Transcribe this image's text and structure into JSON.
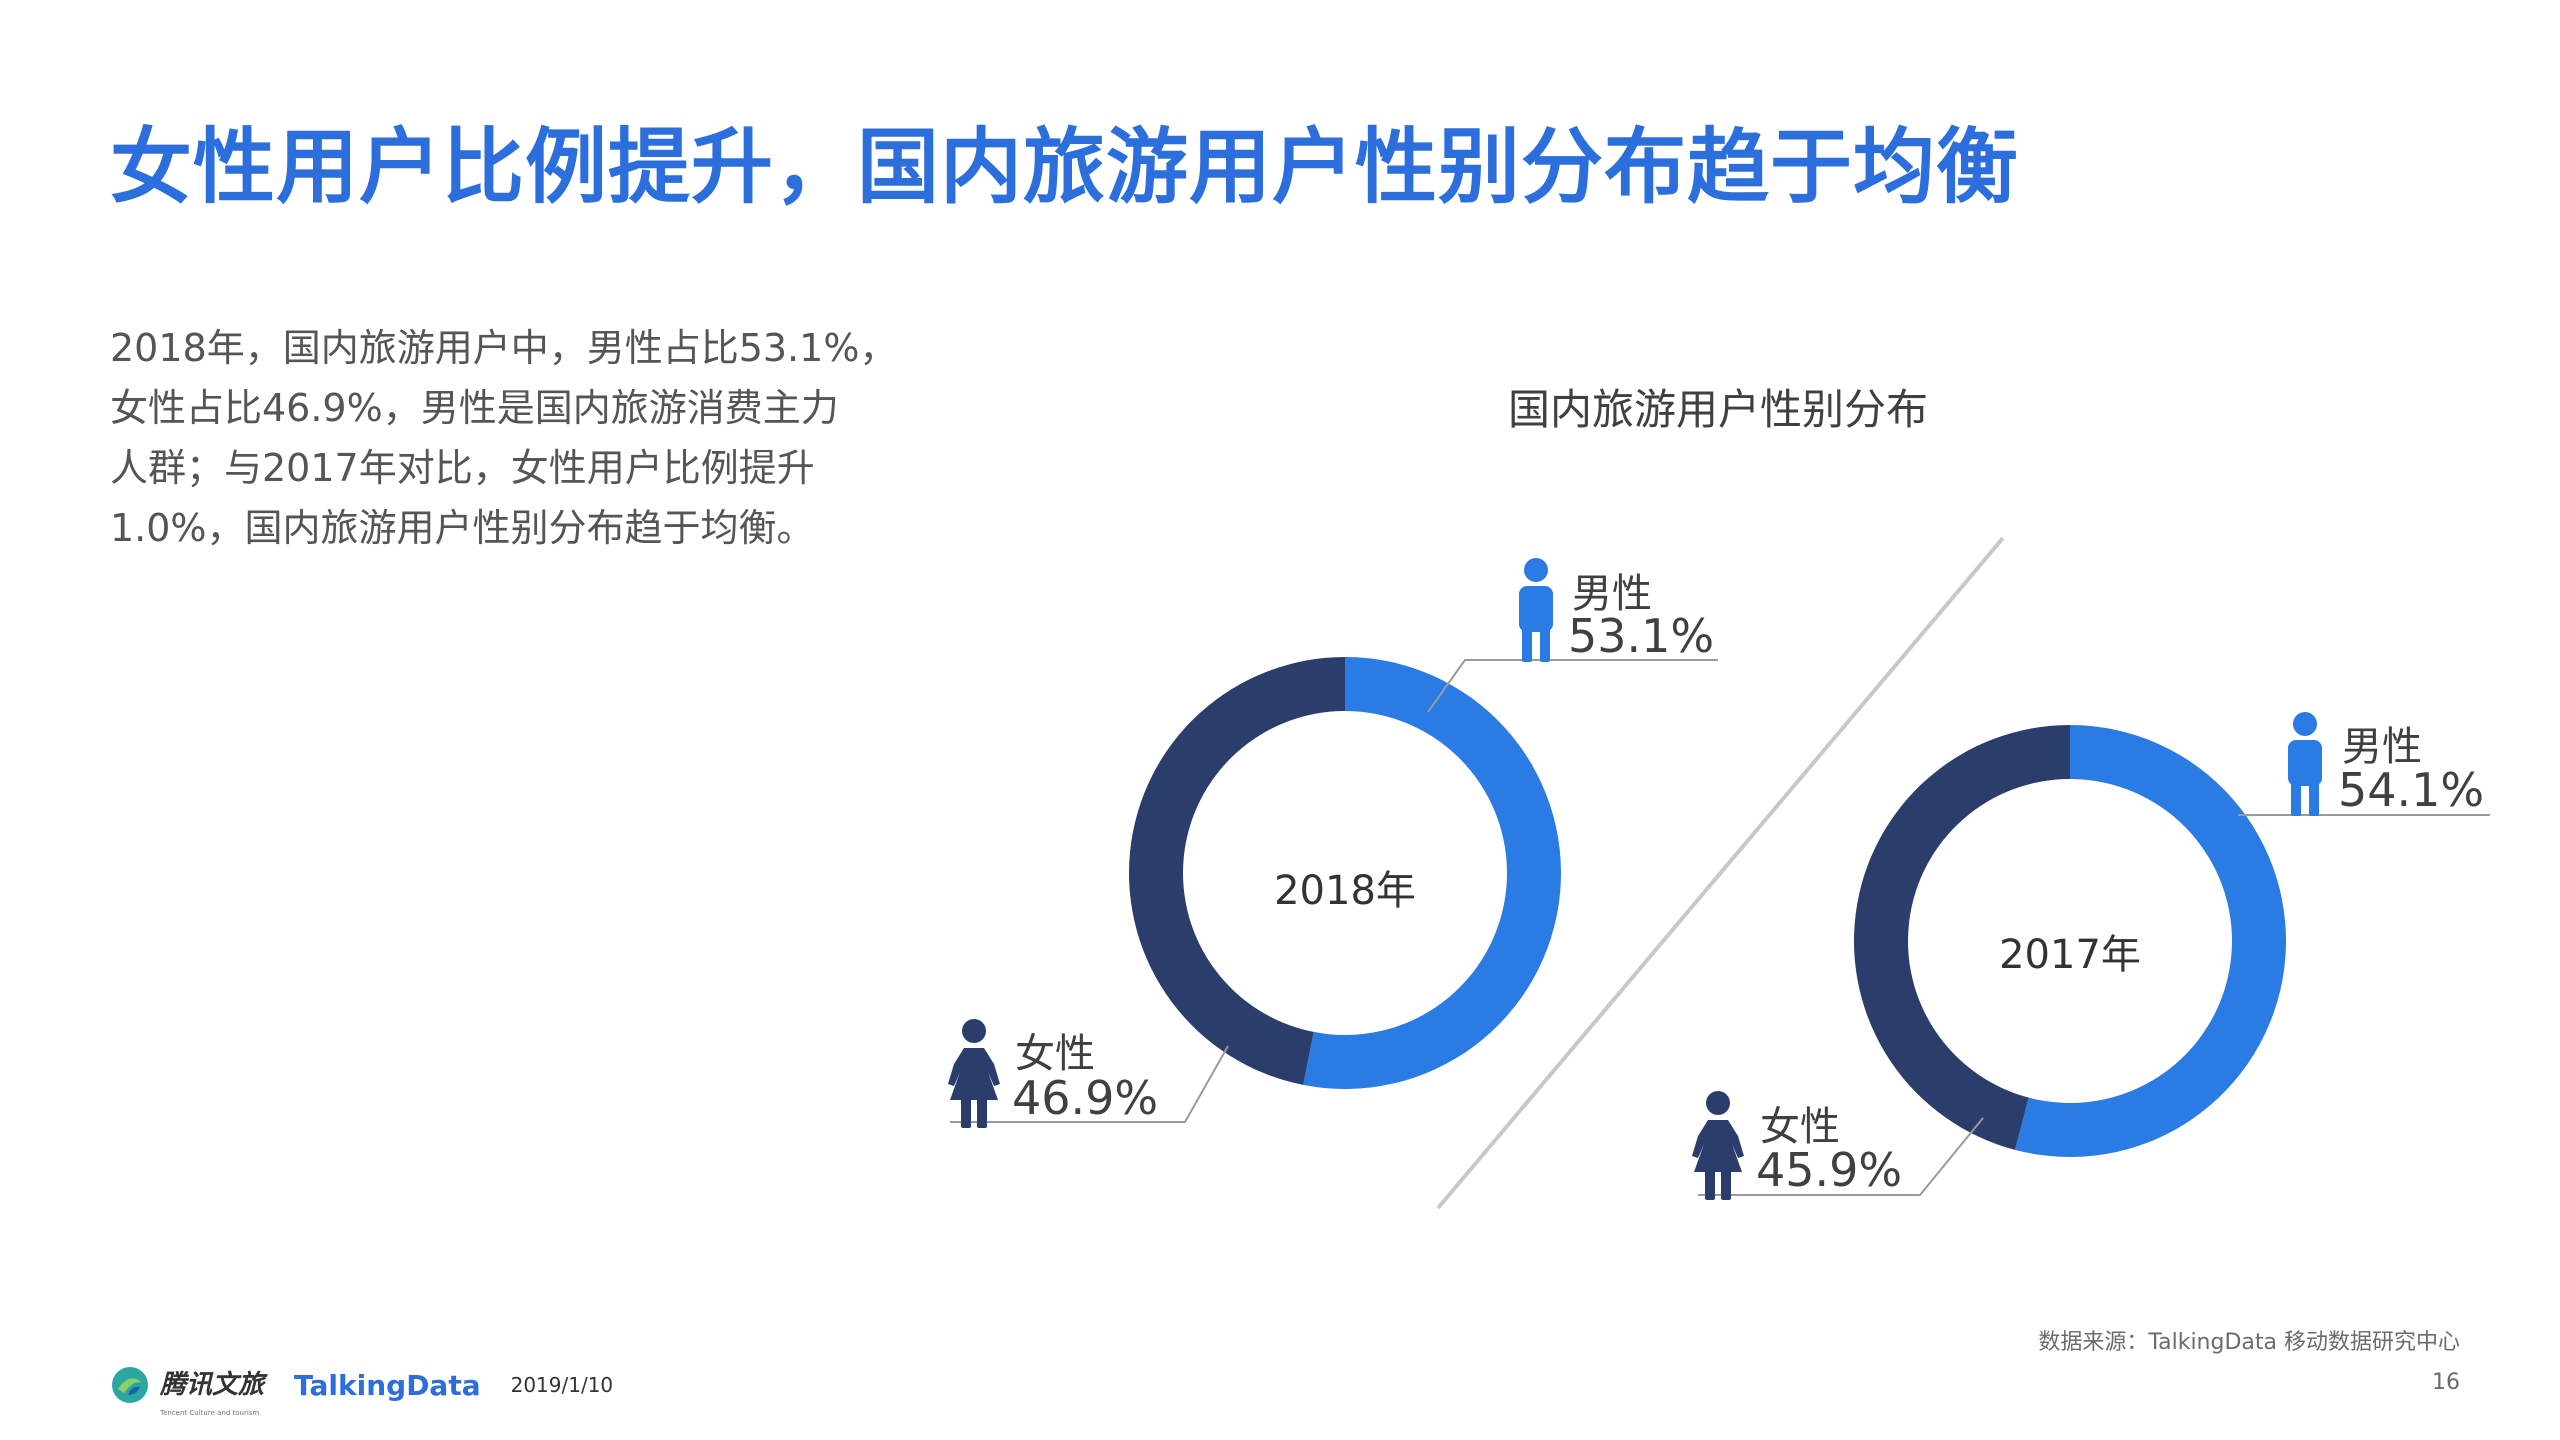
{
  "title": "女性用户比例提升，国内旅游用户性别分布趋于均衡",
  "summary": {
    "lines": [
      "2018年，国内旅游用户中，男性占比53.1%，",
      "女性占比46.9%，男性是国内旅游消费主力",
      "人群；与2017年对比，女性用户比例提升",
      "1.0%，国内旅游用户性别分布趋于均衡。"
    ]
  },
  "chart_data": {
    "type": "pie",
    "title": "国内旅游用户性别分布",
    "charts": [
      {
        "center_label": "2018年",
        "slices": [
          {
            "label": "男性",
            "value": 53.1,
            "display": "53.1%",
            "color": "#2b7be4"
          },
          {
            "label": "女性",
            "value": 46.9,
            "display": "46.9%",
            "color": "#2a3d6b"
          }
        ]
      },
      {
        "center_label": "2017年",
        "slices": [
          {
            "label": "男性",
            "value": 54.1,
            "display": "54.1%",
            "color": "#2b7be4"
          },
          {
            "label": "女性",
            "value": 45.9,
            "display": "45.9%",
            "color": "#2a3d6b"
          }
        ]
      }
    ]
  },
  "footer": {
    "source": "数据来源：TalkingData 移动数据研究中心",
    "page_number": "16",
    "date": "2019/1/10",
    "brand_tencent": "腾讯文旅",
    "brand_tencent_sub": "Tencent Culture and tourism",
    "brand_talkingdata": "TalkingData"
  },
  "colors": {
    "title": "#2c6fdc",
    "male": "#2b7be4",
    "female": "#2a3d6b",
    "male_icon": "#2b7be4",
    "female_icon": "#2a3d6b"
  },
  "icons": [
    "male-person-icon",
    "female-person-icon",
    "tencent-logo-icon"
  ]
}
